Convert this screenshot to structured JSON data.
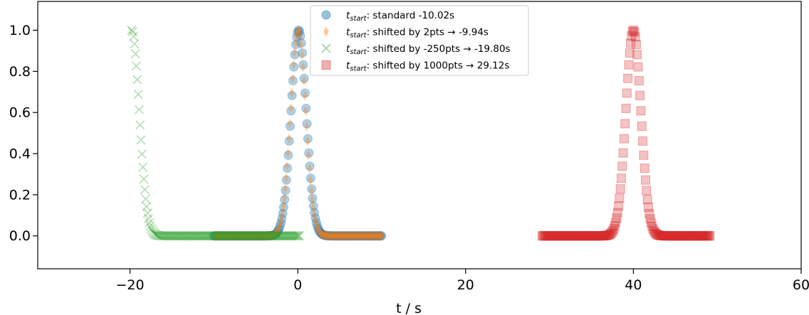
{
  "chart_data": {
    "type": "scatter",
    "title": "",
    "xlabel": "t / s",
    "ylabel": "",
    "xlim": [
      -31,
      60
    ],
    "ylim": [
      -0.16,
      1.14
    ],
    "x_ticks": [
      -20,
      0,
      20,
      40,
      60
    ],
    "x_tick_labels": [
      "−20",
      "0",
      "20",
      "40",
      "60"
    ],
    "y_ticks": [
      0.0,
      0.2,
      0.4,
      0.6,
      0.8,
      1.0
    ],
    "y_tick_labels": [
      "0.0",
      "0.2",
      "0.4",
      "0.6",
      "0.8",
      "1.0"
    ],
    "grid": false,
    "legend_position": "top-center",
    "series": [
      {
        "t_sub": "start",
        "name": ": standard -10.02s",
        "marker": "circle",
        "color": "#1f77b4",
        "x_start": -10.02,
        "x_end": 9.98,
        "peak_center": 0.1,
        "peak_height": 1.0,
        "peak_width": 0.9
      },
      {
        "t_sub": "start",
        "name": ": shifted by 2pts  →  -9.94s",
        "marker": "diamond",
        "color": "#ff7f0e",
        "x_start": -9.94,
        "x_end": 10.06,
        "peak_center": 0.05,
        "peak_height": 1.0,
        "peak_width": 0.9
      },
      {
        "t_sub": "start",
        "name": ": shifted by -250pts  →  -19.80s",
        "marker": "x",
        "color": "#2ca02c",
        "x_start": -19.8,
        "x_end": 0.2,
        "peak_center": -19.8,
        "peak_height": 1.0,
        "peak_width": 0.9
      },
      {
        "t_sub": "start",
        "name": ": shifted by 1000pts  →  29.12s",
        "marker": "square",
        "color": "#d62728",
        "x_start": 29.12,
        "x_end": 49.12,
        "peak_center": 40.0,
        "peak_height": 1.0,
        "peak_width": 0.9
      }
    ]
  }
}
